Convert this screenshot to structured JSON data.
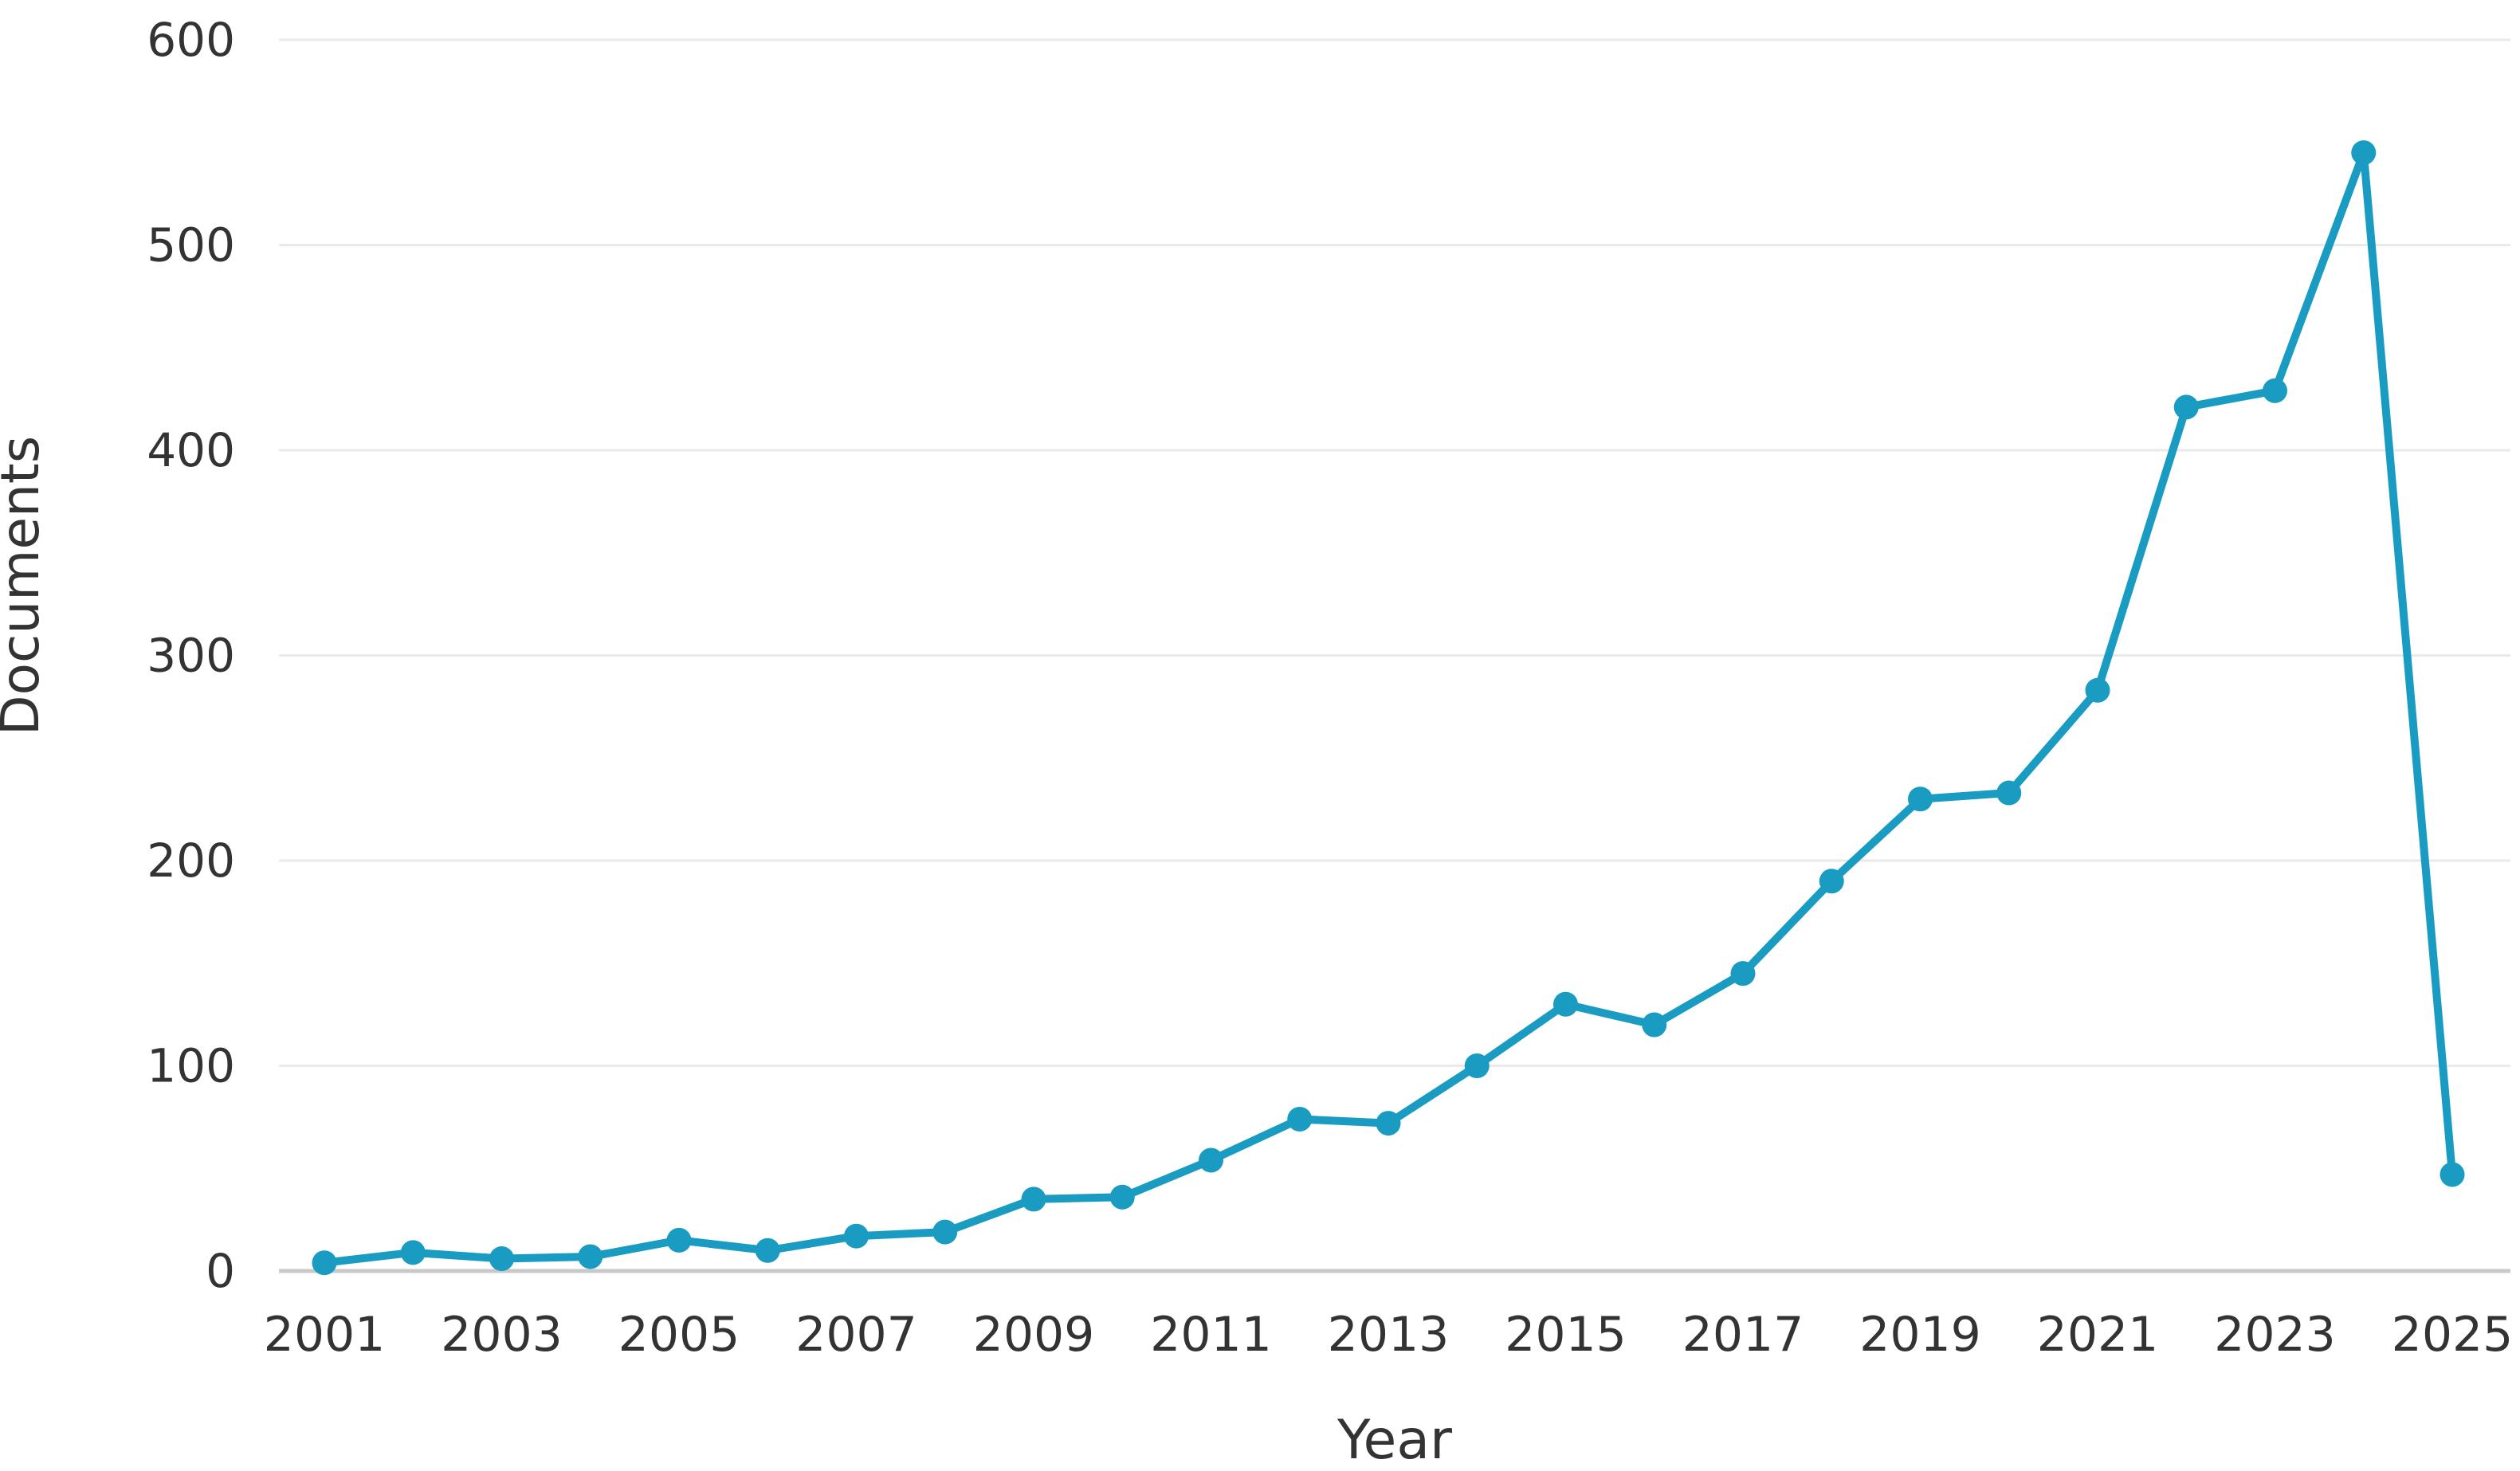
{
  "page": {
    "background": "#ffffff"
  },
  "chart_data": {
    "type": "line",
    "title": "",
    "xlabel": "Year",
    "ylabel": "Documents",
    "series": [
      {
        "name": "Documents",
        "x": [
          2001,
          2002,
          2003,
          2004,
          2005,
          2006,
          2007,
          2008,
          2009,
          2010,
          2011,
          2012,
          2013,
          2014,
          2015,
          2016,
          2017,
          2018,
          2019,
          2020,
          2021,
          2022,
          2023,
          2024,
          2025
        ],
        "values": [
          4,
          9,
          6,
          7,
          15,
          10,
          17,
          19,
          35,
          36,
          54,
          74,
          72,
          100,
          130,
          120,
          145,
          190,
          230,
          233,
          283,
          421,
          429,
          545,
          47
        ]
      }
    ],
    "x_tick_labels": [
      "2001",
      "2003",
      "2005",
      "2007",
      "2009",
      "2011",
      "2013",
      "2015",
      "2017",
      "2019",
      "2021",
      "2023",
      "2025"
    ],
    "x_tick_years": [
      2001,
      2003,
      2005,
      2007,
      2009,
      2011,
      2013,
      2015,
      2017,
      2019,
      2021,
      2023,
      2025
    ],
    "y_ticks": [
      0,
      100,
      200,
      300,
      400,
      500,
      600
    ],
    "y_tick_labels": [
      "0",
      "100",
      "200",
      "300",
      "400",
      "500",
      "600"
    ],
    "xlim": [
      2001,
      2025
    ],
    "ylim": [
      0,
      600
    ],
    "grid": "horizontal",
    "legend_position": "none",
    "marker": "circle",
    "colors": {
      "line": "#1a9cc2",
      "marker": "#1a9cc2",
      "gridline": "#e9e9e9",
      "axis_line": "#c9c9c9",
      "tick_text": "#333333",
      "axis_label_text": "#333333",
      "background": "#ffffff"
    }
  }
}
